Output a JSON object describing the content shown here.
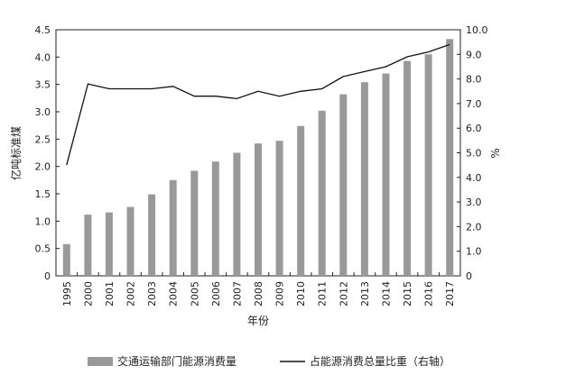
{
  "chart_data": {
    "type": "bar",
    "categories": [
      "1995",
      "2000",
      "2001",
      "2002",
      "2003",
      "2004",
      "2005",
      "2006",
      "2007",
      "2008",
      "2009",
      "2010",
      "2011",
      "2012",
      "2013",
      "2014",
      "2015",
      "2016",
      "2017"
    ],
    "series": [
      {
        "name": "交通运输部门能源消费量",
        "type": "bar",
        "axis": "left",
        "color": "#999999",
        "values": [
          0.58,
          1.12,
          1.16,
          1.26,
          1.49,
          1.75,
          1.92,
          2.09,
          2.25,
          2.42,
          2.47,
          2.74,
          3.02,
          3.32,
          3.54,
          3.7,
          3.93,
          4.05,
          4.33
        ]
      },
      {
        "name": "占能源消费总量比重（右轴）",
        "type": "line",
        "axis": "right",
        "color": "#111111",
        "values": [
          4.5,
          7.8,
          7.6,
          7.6,
          7.6,
          7.7,
          7.3,
          7.3,
          7.2,
          7.5,
          7.3,
          7.5,
          7.6,
          8.1,
          8.3,
          8.5,
          8.9,
          9.1,
          9.4
        ]
      }
    ],
    "xlabel": "年份",
    "ylabel": "亿吨标准煤",
    "y2label": "%",
    "ylim": [
      0,
      4.5
    ],
    "y2lim": [
      0,
      10
    ],
    "yticks": [
      "0",
      "0.5",
      "1.0",
      "1.5",
      "2.0",
      "2.5",
      "3.0",
      "3.5",
      "4.0",
      "4.5"
    ],
    "y2ticks": [
      "0",
      "1.0",
      "2.0",
      "3.0",
      "4.0",
      "5.0",
      "6.0",
      "7.0",
      "8.0",
      "9.0",
      "10.0"
    ],
    "grid": false,
    "legend_position": "bottom"
  }
}
